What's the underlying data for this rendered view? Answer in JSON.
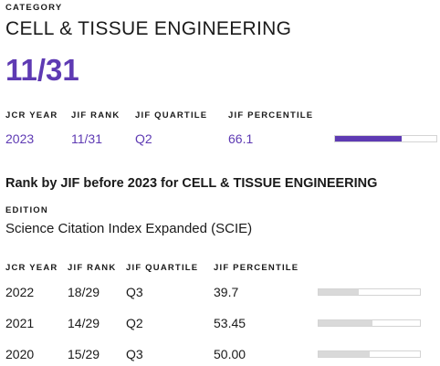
{
  "category": {
    "label": "CATEGORY",
    "name": "CELL & TISSUE ENGINEERING",
    "rank": "11/31"
  },
  "current": {
    "headers": {
      "jcr_year": "JCR YEAR",
      "jif_rank": "JIF RANK",
      "jif_quartile": "JIF QUARTILE",
      "jif_percentile": "JIF PERCENTILE"
    },
    "row": {
      "year": "2023",
      "rank": "11/31",
      "quartile": "Q2",
      "percentile": "66.1",
      "percentile_value": 66.1
    }
  },
  "history": {
    "title": "Rank by JIF before 2023 for CELL & TISSUE ENGINEERING",
    "edition_label": "EDITION",
    "edition_value": "Science Citation Index Expanded (SCIE)",
    "headers": {
      "jcr_year": "JCR YEAR",
      "jif_rank": "JIF RANK",
      "jif_quartile": "JIF QUARTILE",
      "jif_percentile": "JIF PERCENTILE"
    },
    "rows": [
      {
        "year": "2022",
        "rank": "18/29",
        "quartile": "Q3",
        "percentile": "39.7",
        "percentile_value": 39.7
      },
      {
        "year": "2021",
        "rank": "14/29",
        "quartile": "Q2",
        "percentile": "53.45",
        "percentile_value": 53.45
      },
      {
        "year": "2020",
        "rank": "15/29",
        "quartile": "Q3",
        "percentile": "50.00",
        "percentile_value": 50.0
      }
    ]
  },
  "colors": {
    "accent": "#5e3ab3",
    "bar_track_border": "#d4d4d4",
    "bar_hist_fill": "#d9d9d9"
  }
}
